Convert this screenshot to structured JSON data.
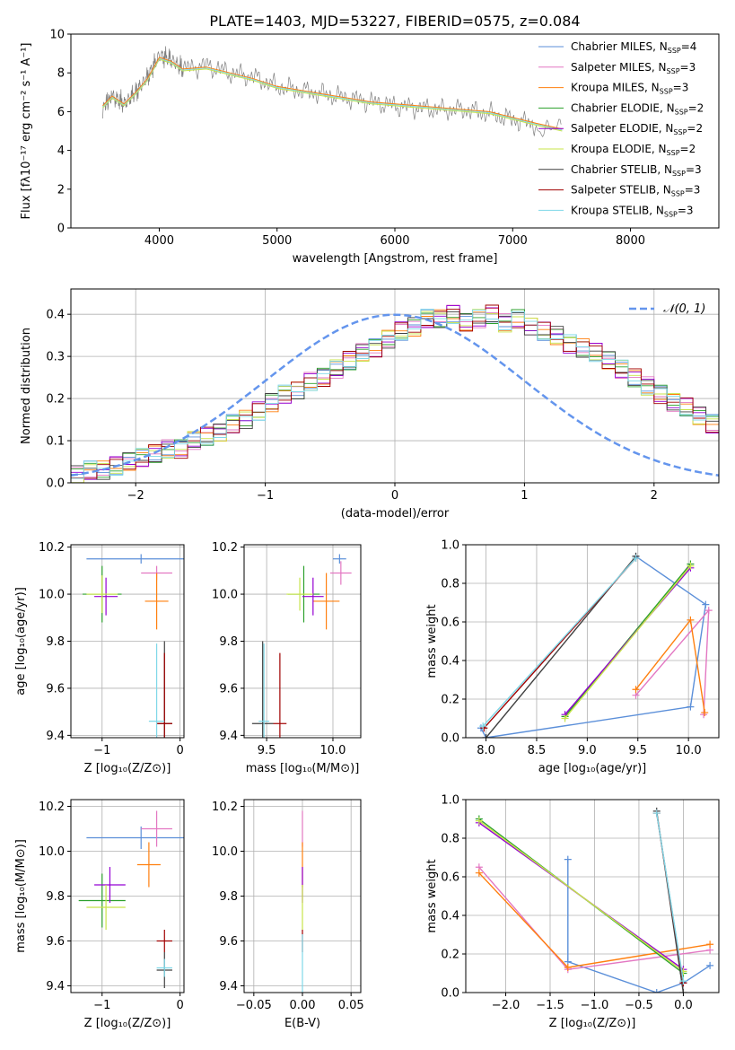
{
  "figure_title": "PLATE=1403, MJD=53227, FIBERID=0575, z=0.084",
  "colors": {
    "chabrier_miles": "#5b8fd9",
    "salpeter_miles": "#e377c2",
    "kroupa_miles": "#ff7f0e",
    "chabrier_elodie": "#2ca02c",
    "salpeter_elodie": "#9400d3",
    "kroupa_elodie": "#c8e44a",
    "chabrier_stelib": "#404040",
    "salpeter_stelib": "#a00000",
    "kroupa_stelib": "#7fd8e8",
    "normal_curve": "#6495ed",
    "data": "#808080",
    "grid": "#b0b0b0"
  },
  "chart_data": [
    {
      "id": "spectrum",
      "type": "line",
      "title": "PLATE=1403, MJD=53227, FIBERID=0575, z=0.084",
      "xlabel": "wavelength [Angstrom, rest frame]",
      "ylabel": "Flux [fλ10⁻¹⁷ erg cm⁻² s⁻¹ A⁻¹]",
      "xlim": [
        3250,
        8750
      ],
      "ylim": [
        0,
        10
      ],
      "xticks": [
        4000,
        5000,
        6000,
        7000,
        8000
      ],
      "yticks": [
        0,
        2,
        4,
        6,
        8,
        10
      ],
      "grid": false,
      "legend_position": "top-right",
      "data_points": [
        [
          3520,
          6.2
        ],
        [
          3600,
          6.8
        ],
        [
          3700,
          6.4
        ],
        [
          3800,
          7.0
        ],
        [
          3900,
          7.8
        ],
        [
          4000,
          8.9
        ],
        [
          4100,
          8.7
        ],
        [
          4200,
          8.2
        ],
        [
          4400,
          8.4
        ],
        [
          4600,
          8.0
        ],
        [
          4800,
          7.8
        ],
        [
          5000,
          7.3
        ],
        [
          5200,
          7.1
        ],
        [
          5400,
          6.9
        ],
        [
          5600,
          6.7
        ],
        [
          5800,
          6.5
        ],
        [
          6000,
          6.3
        ],
        [
          6200,
          6.2
        ],
        [
          6400,
          6.1
        ],
        [
          6600,
          6.1
        ],
        [
          6800,
          5.9
        ],
        [
          7000,
          5.6
        ],
        [
          7200,
          5.3
        ],
        [
          7420,
          5.0
        ]
      ],
      "model_points": [
        [
          3520,
          6.2
        ],
        [
          3600,
          6.7
        ],
        [
          3700,
          6.3
        ],
        [
          3800,
          6.9
        ],
        [
          3900,
          7.6
        ],
        [
          4000,
          8.7
        ],
        [
          4100,
          8.5
        ],
        [
          4200,
          8.1
        ],
        [
          4400,
          8.2
        ],
        [
          4600,
          7.9
        ],
        [
          4800,
          7.6
        ],
        [
          5000,
          7.2
        ],
        [
          5200,
          7.0
        ],
        [
          5400,
          6.8
        ],
        [
          5600,
          6.6
        ],
        [
          5800,
          6.4
        ],
        [
          6000,
          6.3
        ],
        [
          6200,
          6.2
        ],
        [
          6400,
          6.1
        ],
        [
          6600,
          6.0
        ],
        [
          6800,
          5.9
        ],
        [
          7000,
          5.6
        ],
        [
          7200,
          5.3
        ],
        [
          7420,
          5.0
        ]
      ],
      "legend": [
        {
          "label": "Chabrier MILES, N",
          "n": "4",
          "color_key": "chabrier_miles"
        },
        {
          "label": "Salpeter MILES, N",
          "n": "3",
          "color_key": "salpeter_miles"
        },
        {
          "label": "Kroupa MILES, N",
          "n": "3",
          "color_key": "kroupa_miles"
        },
        {
          "label": "Chabrier ELODIE, N",
          "n": "2",
          "color_key": "chabrier_elodie"
        },
        {
          "label": "Salpeter ELODIE, N",
          "n": "2",
          "color_key": "salpeter_elodie"
        },
        {
          "label": "Kroupa ELODIE, N",
          "n": "2",
          "color_key": "kroupa_elodie"
        },
        {
          "label": "Chabrier STELIB, N",
          "n": "3",
          "color_key": "chabrier_stelib"
        },
        {
          "label": "Salpeter STELIB, N",
          "n": "3",
          "color_key": "salpeter_stelib"
        },
        {
          "label": "Kroupa STELIB, N",
          "n": "3",
          "color_key": "kroupa_stelib"
        }
      ],
      "legend_subscript": "SSP"
    },
    {
      "id": "residuals",
      "type": "line",
      "xlabel": "(data-model)/error",
      "ylabel": "Normed distribution",
      "xlim": [
        -2.5,
        2.5
      ],
      "ylim": [
        0,
        0.46
      ],
      "xticks": [
        -2,
        -1,
        0,
        1,
        2
      ],
      "yticks": [
        0.0,
        0.1,
        0.2,
        0.3,
        0.4
      ],
      "grid": true,
      "legend_position": "top-right",
      "curve_label": "𝒩(0, 1)",
      "curve": "normal(mean=0, sigma=1)",
      "bins": {
        "start": -2.5,
        "width": 0.1
      },
      "histogram": [
        0.02,
        0.03,
        0.03,
        0.04,
        0.05,
        0.06,
        0.07,
        0.08,
        0.08,
        0.1,
        0.11,
        0.12,
        0.14,
        0.15,
        0.17,
        0.19,
        0.21,
        0.22,
        0.24,
        0.25,
        0.27,
        0.29,
        0.31,
        0.32,
        0.34,
        0.36,
        0.37,
        0.39,
        0.39,
        0.4,
        0.38,
        0.39,
        0.4,
        0.38,
        0.39,
        0.37,
        0.36,
        0.35,
        0.33,
        0.32,
        0.31,
        0.29,
        0.27,
        0.25,
        0.23,
        0.21,
        0.19,
        0.18,
        0.16,
        0.14
      ]
    },
    {
      "id": "age_vs_Z",
      "type": "scatter",
      "xlabel": "Z [log₁₀(Z/Z⊙)]",
      "ylabel": "age  [log₁₀(age/yr)]",
      "xlim": [
        -1.4,
        0.05
      ],
      "ylim": [
        9.39,
        10.21
      ],
      "xticks": [
        -1,
        0
      ],
      "yticks": [
        9.4,
        9.6,
        9.8,
        10.0,
        10.2
      ],
      "grid": true,
      "points": [
        {
          "c": "chabrier_miles",
          "x": -0.5,
          "xerr": 0.7,
          "y": 10.15,
          "yerr": 0.02
        },
        {
          "c": "salpeter_miles",
          "x": -0.3,
          "xerr": 0.2,
          "y": 10.09,
          "yerr": 0.03
        },
        {
          "c": "kroupa_miles",
          "x": -0.3,
          "xerr": 0.15,
          "y": 9.97,
          "yerr": 0.12
        },
        {
          "c": "chabrier_elodie",
          "x": -1.0,
          "xerr": 0.25,
          "y": 10.0,
          "yerr": 0.12
        },
        {
          "c": "salpeter_elodie",
          "x": -0.95,
          "xerr": 0.15,
          "y": 9.99,
          "yerr": 0.08
        },
        {
          "c": "kroupa_elodie",
          "x": -1.0,
          "xerr": 0.2,
          "y": 10.0,
          "yerr": 0.08
        },
        {
          "c": "chabrier_stelib",
          "x": -0.2,
          "xerr": 0.1,
          "y": 9.45,
          "yerr": 0.35
        },
        {
          "c": "salpeter_stelib",
          "x": -0.2,
          "xerr": 0.1,
          "y": 9.45,
          "yerr": 0.3
        },
        {
          "c": "kroupa_stelib",
          "x": -0.3,
          "xerr": 0.1,
          "y": 9.46,
          "yerr": 0.33
        }
      ]
    },
    {
      "id": "age_vs_mass",
      "type": "scatter",
      "xlabel": "mass [log₁₀(M/M⊙)]",
      "ylabel": "",
      "xlim": [
        9.33,
        10.21
      ],
      "ylim": [
        9.39,
        10.21
      ],
      "xticks": [
        9.5,
        10.0
      ],
      "yticks": [
        9.4,
        9.6,
        9.8,
        10.0,
        10.2
      ],
      "grid": true,
      "points": [
        {
          "c": "chabrier_miles",
          "x": 10.05,
          "xerr": 0.05,
          "y": 10.15,
          "yerr": 0.02
        },
        {
          "c": "salpeter_miles",
          "x": 10.06,
          "xerr": 0.08,
          "y": 10.09,
          "yerr": 0.05
        },
        {
          "c": "kroupa_miles",
          "x": 9.95,
          "xerr": 0.1,
          "y": 9.97,
          "yerr": 0.12
        },
        {
          "c": "chabrier_elodie",
          "x": 9.78,
          "xerr": 0.12,
          "y": 10.0,
          "yerr": 0.12
        },
        {
          "c": "salpeter_elodie",
          "x": 9.85,
          "xerr": 0.08,
          "y": 9.99,
          "yerr": 0.08
        },
        {
          "c": "kroupa_elodie",
          "x": 9.75,
          "xerr": 0.1,
          "y": 10.0,
          "yerr": 0.07
        },
        {
          "c": "chabrier_stelib",
          "x": 9.47,
          "xerr": 0.08,
          "y": 9.45,
          "yerr": 0.35
        },
        {
          "c": "salpeter_stelib",
          "x": 9.6,
          "xerr": 0.05,
          "y": 9.45,
          "yerr": 0.3
        },
        {
          "c": "kroupa_stelib",
          "x": 9.48,
          "xerr": 0.04,
          "y": 9.46,
          "yerr": 0.33
        }
      ]
    },
    {
      "id": "mass_weight_vs_age",
      "type": "line",
      "xlabel": "age  [log₁₀(age/yr)]",
      "ylabel": "mass weight",
      "xlim": [
        7.8,
        10.3
      ],
      "ylim": [
        0,
        1
      ],
      "xticks": [
        8.0,
        8.5,
        9.0,
        9.5,
        10.0
      ],
      "yticks": [
        0.0,
        0.2,
        0.4,
        0.6,
        0.8,
        1.0
      ],
      "grid": true,
      "series": [
        {
          "c": "chabrier_miles",
          "x": [
            7.95,
            8.0,
            10.02,
            10.17,
            9.48
          ],
          "y": [
            0.05,
            0.0,
            0.16,
            0.69,
            0.94
          ]
        },
        {
          "c": "salpeter_miles",
          "x": [
            9.48,
            10.2,
            10.15
          ],
          "y": [
            0.22,
            0.66,
            0.12
          ]
        },
        {
          "c": "kroupa_miles",
          "x": [
            9.48,
            10.02,
            10.16
          ],
          "y": [
            0.25,
            0.61,
            0.13
          ]
        },
        {
          "c": "chabrier_elodie",
          "x": [
            8.78,
            10.02
          ],
          "y": [
            0.11,
            0.9
          ]
        },
        {
          "c": "salpeter_elodie",
          "x": [
            8.78,
            10.02
          ],
          "y": [
            0.12,
            0.88
          ]
        },
        {
          "c": "kroupa_elodie",
          "x": [
            8.78,
            10.02
          ],
          "y": [
            0.1,
            0.89
          ]
        },
        {
          "c": "chabrier_stelib",
          "x": [
            8.0,
            9.48
          ],
          "y": [
            0.0,
            0.94
          ]
        },
        {
          "c": "salpeter_stelib",
          "x": [
            7.98,
            9.48
          ],
          "y": [
            0.05,
            0.93
          ]
        },
        {
          "c": "kroupa_stelib",
          "x": [
            7.97,
            9.48
          ],
          "y": [
            0.06,
            0.93
          ]
        }
      ]
    },
    {
      "id": "mass_vs_Z",
      "type": "scatter",
      "xlabel": "Z [log₁₀(Z/Z⊙)]",
      "ylabel": "mass [log₁₀(M/M⊙)]",
      "xlim": [
        -1.4,
        0.05
      ],
      "ylim": [
        9.37,
        10.23
      ],
      "xticks": [
        -1,
        0
      ],
      "yticks": [
        9.4,
        9.6,
        9.8,
        10.0,
        10.2
      ],
      "grid": true,
      "points": [
        {
          "c": "chabrier_miles",
          "x": -0.5,
          "xerr": 0.7,
          "y": 10.06,
          "yerr": 0.05
        },
        {
          "c": "salpeter_miles",
          "x": -0.3,
          "xerr": 0.2,
          "y": 10.1,
          "yerr": 0.08
        },
        {
          "c": "kroupa_miles",
          "x": -0.4,
          "xerr": 0.15,
          "y": 9.94,
          "yerr": 0.1
        },
        {
          "c": "chabrier_elodie",
          "x": -1.0,
          "xerr": 0.3,
          "y": 9.78,
          "yerr": 0.12
        },
        {
          "c": "salpeter_elodie",
          "x": -0.9,
          "xerr": 0.2,
          "y": 9.85,
          "yerr": 0.08
        },
        {
          "c": "kroupa_elodie",
          "x": -0.95,
          "xerr": 0.25,
          "y": 9.75,
          "yerr": 0.1
        },
        {
          "c": "chabrier_stelib",
          "x": -0.2,
          "xerr": 0.1,
          "y": 9.47,
          "yerr": 0.08
        },
        {
          "c": "salpeter_stelib",
          "x": -0.2,
          "xerr": 0.1,
          "y": 9.6,
          "yerr": 0.05
        },
        {
          "c": "kroupa_stelib",
          "x": -0.2,
          "xerr": 0.1,
          "y": 9.48,
          "yerr": 0.04
        }
      ]
    },
    {
      "id": "mass_vs_ebv",
      "type": "scatter",
      "xlabel": "E(B-V)",
      "ylabel": "",
      "xlim": [
        -0.06,
        0.06
      ],
      "ylim": [
        9.37,
        10.23
      ],
      "xticks": [
        -0.05,
        0.0,
        0.05
      ],
      "yticks": [
        9.4,
        9.6,
        9.8,
        10.0,
        10.2
      ],
      "grid": true,
      "points": [
        {
          "c": "salpeter_miles",
          "x": 0,
          "xerr": 0,
          "y": 10.1,
          "yerr": 0.08
        },
        {
          "c": "kroupa_miles",
          "x": 0,
          "xerr": 0,
          "y": 9.94,
          "yerr": 0.1
        },
        {
          "c": "salpeter_elodie",
          "x": 0,
          "xerr": 0,
          "y": 9.85,
          "yerr": 0.08
        },
        {
          "c": "kroupa_elodie",
          "x": 0,
          "xerr": 0,
          "y": 9.75,
          "yerr": 0.1
        },
        {
          "c": "salpeter_stelib",
          "x": 0,
          "xerr": 0,
          "y": 9.6,
          "yerr": 0.05
        },
        {
          "c": "kroupa_stelib",
          "x": 0,
          "xerr": 0,
          "y": 9.48,
          "yerr": 0.15
        }
      ]
    },
    {
      "id": "mass_weight_vs_Z",
      "type": "line",
      "xlabel": "Z [log₁₀(Z/Z⊙)]",
      "ylabel": "mass weight",
      "xlim": [
        -2.45,
        0.4
      ],
      "ylim": [
        0,
        1
      ],
      "xticks": [
        -2.0,
        -1.5,
        -1.0,
        -0.5,
        0.0
      ],
      "yticks": [
        0.0,
        0.2,
        0.4,
        0.6,
        0.8,
        1.0
      ],
      "grid": true,
      "series": [
        {
          "c": "chabrier_miles",
          "x": [
            0.3,
            0.0,
            -0.3,
            -1.3,
            -1.3
          ],
          "y": [
            0.14,
            0.05,
            0.0,
            0.16,
            0.69
          ]
        },
        {
          "c": "salpeter_miles",
          "x": [
            -2.3,
            -1.3,
            0.3
          ],
          "y": [
            0.65,
            0.12,
            0.22
          ]
        },
        {
          "c": "kroupa_miles",
          "x": [
            -2.3,
            -1.3,
            0.3
          ],
          "y": [
            0.62,
            0.13,
            0.25
          ]
        },
        {
          "c": "chabrier_elodie",
          "x": [
            -2.3,
            0.0
          ],
          "y": [
            0.9,
            0.1
          ]
        },
        {
          "c": "salpeter_elodie",
          "x": [
            -2.3,
            0.0
          ],
          "y": [
            0.88,
            0.12
          ]
        },
        {
          "c": "kroupa_elodie",
          "x": [
            -2.3,
            0.0
          ],
          "y": [
            0.89,
            0.11
          ]
        },
        {
          "c": "chabrier_stelib",
          "x": [
            -0.3,
            0.0
          ],
          "y": [
            0.94,
            0.0
          ]
        },
        {
          "c": "salpeter_stelib",
          "x": [
            -0.3,
            0.0
          ],
          "y": [
            0.93,
            0.05
          ]
        },
        {
          "c": "kroupa_stelib",
          "x": [
            -0.3,
            0.0
          ],
          "y": [
            0.93,
            0.06
          ]
        }
      ]
    }
  ]
}
